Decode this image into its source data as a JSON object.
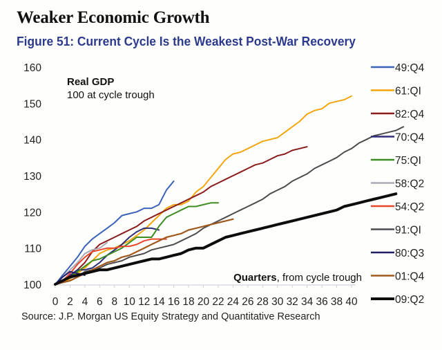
{
  "header": {
    "heading": "Weaker Economic Growth",
    "figure_title": "Figure 51: Current Cycle Is the Weakest Post-War Recovery"
  },
  "source": "Source: J.P. Morgan US Equity Strategy and Quantitative Research",
  "chart_data": {
    "type": "line",
    "title": "Figure 51: Current Cycle Is the Weakest Post-War Recovery",
    "ylabel_title": "Real GDP",
    "ylabel_subtitle": "100 at cycle trough",
    "xlabel_bold": "Quarters",
    "xlabel_rest": ", from cycle trough",
    "xlim": [
      0,
      40
    ],
    "ylim": [
      100,
      160
    ],
    "xticks": [
      "0",
      "2",
      "4",
      "6",
      "8",
      "10",
      "12",
      "14",
      "16",
      "18",
      "20",
      "22",
      "24",
      "26",
      "28",
      "30",
      "32",
      "34",
      "36",
      "38",
      "40"
    ],
    "yticks": [
      "100",
      "110",
      "120",
      "130",
      "140",
      "150",
      "160"
    ],
    "grid": false,
    "legend_position": "right",
    "series": [
      {
        "name": "49:Q4",
        "color": "#3a62b8",
        "width": 2,
        "values": [
          100,
          102.5,
          105,
          107.5,
          110.5,
          112.5,
          114,
          115.5,
          117,
          119,
          119.5,
          120,
          121,
          121,
          122,
          126,
          128.5
        ]
      },
      {
        "name": "61:QI",
        "color": "#f2a60c",
        "width": 2,
        "values": [
          100,
          100.5,
          101.5,
          103,
          104.5,
          106.5,
          108.5,
          109.5,
          110,
          111,
          112,
          113.5,
          115,
          117,
          119,
          121,
          122,
          122,
          123,
          125.5,
          127,
          129.5,
          132,
          134.5,
          136,
          136.5,
          137.5,
          138.5,
          139.5,
          140,
          140.5,
          142,
          143.5,
          145,
          147,
          148,
          148.5,
          150,
          150.5,
          151,
          152
        ]
      },
      {
        "name": "82:Q4",
        "color": "#8b1c1c",
        "width": 2,
        "values": [
          100,
          101,
          102,
          104,
          106,
          109,
          111,
          112,
          113,
          114,
          115,
          116,
          117.5,
          118.5,
          119.5,
          120.5,
          121.5,
          122.5,
          123.5,
          124.5,
          125.5,
          127,
          128,
          129,
          130,
          131,
          132,
          133,
          133.5,
          134.5,
          135.5,
          136,
          137,
          137.5,
          138
        ]
      },
      {
        "name": "70:Q4",
        "color": "#2e2e7a",
        "width": 2,
        "values": [
          100,
          101,
          102.5,
          104,
          104,
          104.5,
          106,
          108,
          109.5,
          111,
          113,
          114.5,
          115.5,
          115.5,
          115
        ]
      },
      {
        "name": "75:QI",
        "color": "#3c8c22",
        "width": 2,
        "values": [
          100,
          101,
          102,
          103.5,
          105,
          106.5,
          107,
          108,
          109,
          110,
          111.5,
          113,
          113,
          113,
          116,
          118.5,
          119.5,
          120.5,
          121.5,
          121.5,
          122,
          122.5,
          122.5
        ]
      },
      {
        "name": "58:Q2",
        "color": "#a9a9b4",
        "width": 2,
        "values": [
          100,
          102,
          104,
          106,
          108.5,
          109.5,
          110,
          111.5
        ]
      },
      {
        "name": "54:Q2",
        "color": "#e8462b",
        "width": 2,
        "values": [
          100,
          101,
          103,
          105.5,
          107.5,
          109,
          109.5,
          110,
          110,
          110.5,
          110.5,
          111,
          112,
          112.5,
          112.5,
          112.5
        ]
      },
      {
        "name": "91:QI",
        "color": "#4c4c4e",
        "width": 2,
        "values": [
          100,
          100.5,
          101,
          102,
          103.5,
          104,
          104.5,
          105.5,
          106,
          106.5,
          107.5,
          108,
          108.5,
          109.5,
          110,
          110.5,
          111,
          112,
          113,
          114,
          115.5,
          116.5,
          117.5,
          118.5,
          119.5,
          120.5,
          121.5,
          122.5,
          123.5,
          125,
          126,
          127,
          128.5,
          129.5,
          130.5,
          132,
          133,
          134,
          135,
          136.5,
          137.5,
          139,
          140,
          141,
          141.5,
          142,
          142.5,
          143.5
        ]
      },
      {
        "name": "80:Q3",
        "color": "#1f1f66",
        "width": 2,
        "values": [
          100,
          102,
          103.5,
          103,
          102.5
        ]
      },
      {
        "name": "01:Q4",
        "color": "#9e5a1e",
        "width": 2.2,
        "values": [
          100,
          100.5,
          101,
          102,
          103,
          104,
          105,
          106,
          106.5,
          107.5,
          108,
          109,
          110,
          111,
          112,
          113,
          113.5,
          114,
          115,
          115.5,
          116,
          116.5,
          117,
          117.5,
          118
        ]
      },
      {
        "name": "09:Q2",
        "color": "#0d0d0d",
        "width": 4,
        "values": [
          100,
          101,
          102,
          102.5,
          103,
          103.5,
          104,
          104,
          104.5,
          105,
          105.5,
          106,
          106.5,
          107,
          107,
          107.5,
          108,
          108.5,
          109.5,
          110,
          110,
          111,
          112,
          113,
          113.5,
          114,
          114.5,
          115,
          115.5,
          116,
          116.5,
          117,
          117.5,
          118,
          118.5,
          119,
          119.5,
          120,
          120.5,
          121.5,
          122,
          122.5,
          123,
          123.5,
          124,
          124.5,
          125
        ]
      }
    ]
  }
}
